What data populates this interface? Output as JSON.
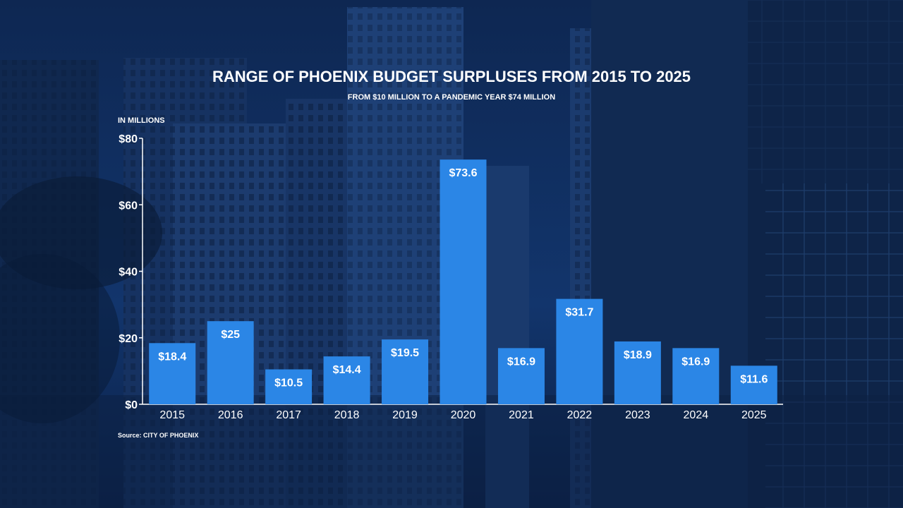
{
  "chart_data": {
    "type": "bar",
    "title": "RANGE OF PHOENIX BUDGET SURPLUSES FROM 2015 TO 2025",
    "subtitle": "FROM $10 MILLION TO A PANDEMIC YEAR $74 MILLION",
    "ylabel": "IN MILLIONS",
    "source": "Source: CITY OF PHOENIX",
    "categories": [
      "2015",
      "2016",
      "2017",
      "2018",
      "2019",
      "2020",
      "2021",
      "2022",
      "2023",
      "2024",
      "2025"
    ],
    "values": [
      18.4,
      25,
      10.5,
      14.4,
      19.5,
      73.6,
      16.9,
      31.7,
      18.9,
      16.9,
      11.6
    ],
    "value_labels": [
      "$18.4",
      "$25",
      "$10.5",
      "$14.4",
      "$19.5",
      "$73.6",
      "$16.9",
      "$31.7",
      "$18.9",
      "$16.9",
      "$11.6"
    ],
    "ylim": [
      0,
      80
    ],
    "yticks": [
      0,
      20,
      40,
      60,
      80
    ],
    "ytick_labels": [
      "$0",
      "$20",
      "$40",
      "$60",
      "$80"
    ],
    "grid": false,
    "legend": "none",
    "bar_color": "#2b86e6",
    "text_color": "#ffffff"
  }
}
